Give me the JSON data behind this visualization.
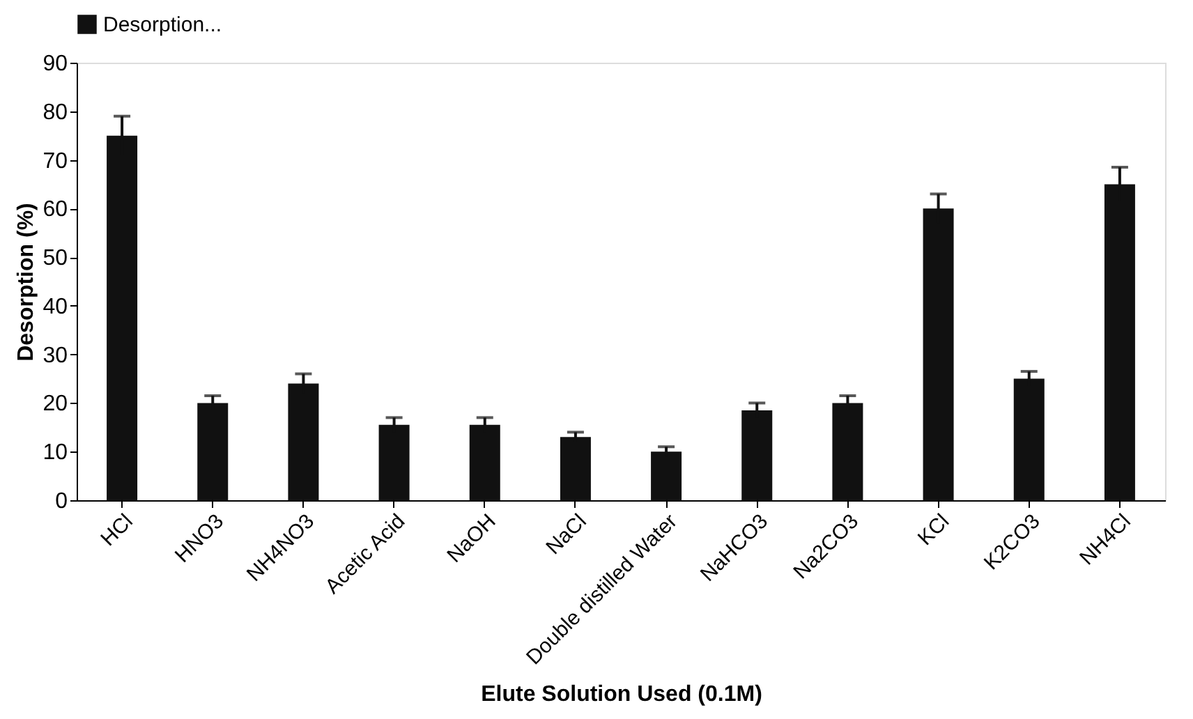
{
  "chart_data": {
    "type": "bar",
    "xlabel": "Elute Solution Used (0.1M)",
    "ylabel": "Desorption (%)",
    "categories": [
      "HCl",
      "HNO3",
      "NH4NO3",
      "Acetic Acid",
      "NaOH",
      "NaCl",
      "Double distilled Water",
      "NaHCO3",
      "Na2CO3",
      "KCl",
      "K2CO3",
      "NH4Cl"
    ],
    "series": [
      {
        "name": "Desorption...",
        "color": "#111111",
        "values": [
          75,
          20,
          24,
          15.5,
          15.5,
          13,
          10,
          18.5,
          20,
          60,
          25,
          65
        ],
        "errors": [
          4,
          1.5,
          2,
          1.5,
          1.5,
          1,
          1,
          1.5,
          1.5,
          3,
          1.5,
          3.5
        ]
      }
    ],
    "ylim": [
      0,
      90
    ],
    "yticks": [
      0,
      10,
      20,
      30,
      40,
      50,
      60,
      70,
      80,
      90
    ],
    "grid": false,
    "legend": "top"
  }
}
